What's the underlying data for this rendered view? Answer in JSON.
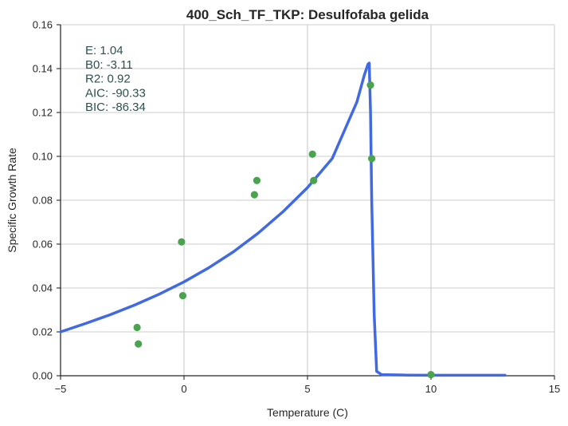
{
  "chart_data": {
    "type": "scatter",
    "title": "400_Sch_TF_TKP: Desulfofaba gelida",
    "xlabel": "Temperature (C)",
    "ylabel": "Specific Growth Rate",
    "xlim": [
      -5,
      15
    ],
    "ylim": [
      0,
      0.16
    ],
    "xticks": [
      -5,
      0,
      5,
      10,
      15
    ],
    "xtick_labels": [
      "−5",
      "0",
      "5",
      "10",
      "15"
    ],
    "yticks": [
      0.0,
      0.02,
      0.04,
      0.06,
      0.08,
      0.1,
      0.12,
      0.14,
      0.16
    ],
    "ytick_labels": [
      "0.00",
      "0.02",
      "0.04",
      "0.06",
      "0.08",
      "0.10",
      "0.12",
      "0.14",
      "0.16"
    ],
    "grid": true,
    "colors": {
      "points": "#4aa34e",
      "fit": "#4169e1",
      "stats_text": "#2f4f4f",
      "grid": "#cccccc",
      "axis": "#262626"
    },
    "points": {
      "x": [
        -1.9,
        -1.85,
        -0.1,
        -0.05,
        2.85,
        2.95,
        5.2,
        5.25,
        7.55,
        7.6,
        10.0
      ],
      "y": [
        0.022,
        0.0145,
        0.061,
        0.0365,
        0.0825,
        0.089,
        0.101,
        0.089,
        0.1325,
        0.099,
        0.0005
      ]
    },
    "fit": {
      "x": [
        -5,
        -4,
        -3,
        -2,
        -1,
        0,
        1,
        2,
        3,
        4,
        5,
        6,
        7,
        7.3,
        7.45,
        7.5,
        7.55,
        7.6,
        7.7,
        7.8,
        8,
        9,
        10,
        11,
        12,
        13
      ],
      "y": [
        0.02,
        0.0238,
        0.0278,
        0.0322,
        0.0372,
        0.0428,
        0.0492,
        0.0565,
        0.065,
        0.0747,
        0.0858,
        0.099,
        0.1248,
        0.137,
        0.142,
        0.1425,
        0.12,
        0.08,
        0.028,
        0.002,
        0.0005,
        0.0003,
        0.0002,
        0.0002,
        0.0002,
        0.0002
      ]
    },
    "stats": [
      {
        "label": "E:",
        "value": "1.04"
      },
      {
        "label": "B0:",
        "value": "-3.11"
      },
      {
        "label": "R2:",
        "value": "0.92"
      },
      {
        "label": "AIC:",
        "value": "-90.33"
      },
      {
        "label": "BIC:",
        "value": "-86.34"
      }
    ]
  }
}
